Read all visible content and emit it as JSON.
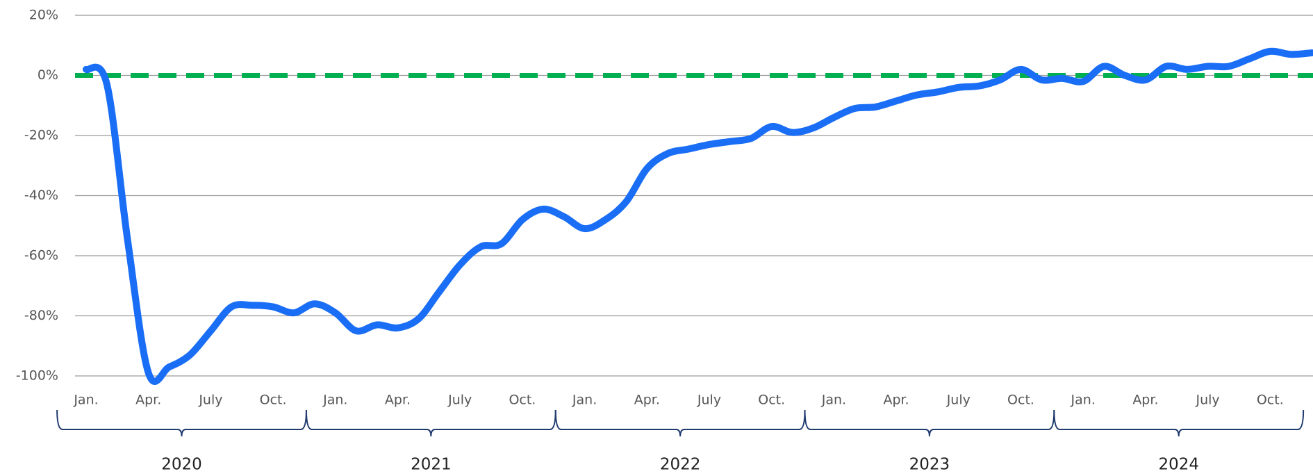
{
  "chart_data": {
    "type": "line",
    "categories": [
      "Jan.",
      null,
      null,
      "Apr.",
      null,
      null,
      "July",
      null,
      null,
      "Oct.",
      null,
      null,
      "Jan.",
      null,
      null,
      "Apr.",
      null,
      null,
      "July",
      null,
      null,
      "Oct.",
      null,
      null,
      "Jan.",
      null,
      null,
      "Apr.",
      null,
      null,
      "July",
      null,
      null,
      "Oct.",
      null,
      null,
      "Jan.",
      null,
      null,
      "Apr.",
      null,
      null,
      "July",
      null,
      null,
      "Oct.",
      null,
      null,
      "Jan.",
      null,
      null,
      "Apr.",
      null,
      null,
      "July",
      null,
      null,
      "Oct.",
      null,
      null
    ],
    "years": [
      "2020",
      "2021",
      "2022",
      "2023",
      "2024"
    ],
    "series": [
      {
        "color": "#1a6ef5",
        "values": [
          2,
          -3,
          -55,
          -99,
          -97,
          -93,
          -85,
          -77,
          -76.5,
          -77,
          -79,
          -76,
          -79,
          -85,
          -83,
          -84,
          -81,
          -72,
          -63,
          -57,
          -56,
          -48,
          -44.5,
          -47,
          -51,
          -48,
          -42,
          -31,
          -26,
          -24.5,
          -23,
          -22,
          -21,
          -17,
          -19,
          -17.5,
          -14,
          -11,
          -10.5,
          -8.5,
          -6.5,
          -5.5,
          -4,
          -3.5,
          -1.5,
          2,
          -1.5,
          -1,
          -2,
          3,
          0,
          -1.5,
          3,
          2,
          3,
          3,
          5.5,
          8,
          7,
          7.5
        ]
      }
    ],
    "reference_line": {
      "value": 0,
      "color": "#00b050"
    },
    "ylim": [
      -100,
      20
    ],
    "yticks": [
      {
        "value": -100,
        "label": "-100%"
      },
      {
        "value": -80,
        "label": "-80%"
      },
      {
        "value": -60,
        "label": "-60%"
      },
      {
        "value": -40,
        "label": "-40%"
      },
      {
        "value": -20,
        "label": "-20%"
      },
      {
        "value": 0,
        "label": "0%"
      },
      {
        "value": 20,
        "label": "20%"
      }
    ],
    "grid": true
  }
}
